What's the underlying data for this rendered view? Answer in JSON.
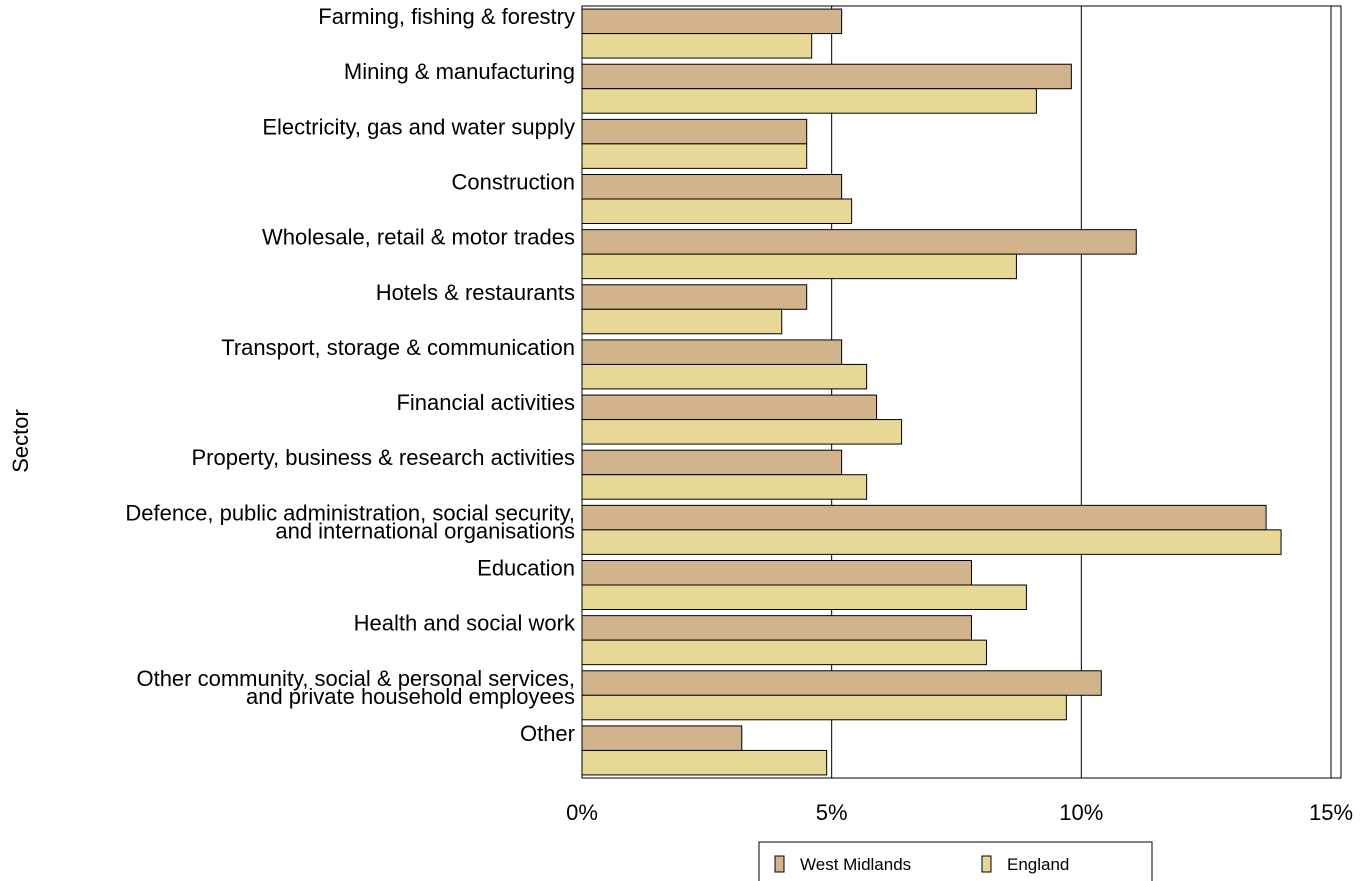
{
  "chart_data": {
    "type": "bar",
    "orientation": "horizontal",
    "title": "",
    "xlabel": "",
    "ylabel": "Sector",
    "xlim": [
      0,
      15
    ],
    "x_ticks": [
      "0%",
      "5%",
      "10%",
      "15%"
    ],
    "grid": true,
    "legend_position": "bottom",
    "categories": [
      [
        "Farming, fishing & forestry"
      ],
      [
        "Mining & manufacturing"
      ],
      [
        "Electricity, gas and water supply"
      ],
      [
        "Construction"
      ],
      [
        "Wholesale, retail & motor trades"
      ],
      [
        "Hotels & restaurants"
      ],
      [
        "Transport, storage & communication"
      ],
      [
        "Financial activities"
      ],
      [
        "Property, business & research activities"
      ],
      [
        "Defence, public administration, social security,",
        "and international organisations"
      ],
      [
        "Education"
      ],
      [
        "Health and social work"
      ],
      [
        "Other community, social & personal services,",
        "and private household employees"
      ],
      [
        "Other"
      ]
    ],
    "series": [
      {
        "name": "West Midlands",
        "color": "#d2b48c",
        "values": [
          5.2,
          9.8,
          4.5,
          5.2,
          11.1,
          4.5,
          5.2,
          5.9,
          5.2,
          13.7,
          7.8,
          7.8,
          10.4,
          3.2
        ]
      },
      {
        "name": "England",
        "color": "#e8d898",
        "values": [
          4.6,
          9.1,
          4.5,
          5.4,
          8.7,
          4.0,
          5.7,
          6.4,
          5.7,
          14.0,
          8.9,
          8.1,
          9.7,
          4.9
        ]
      }
    ]
  }
}
